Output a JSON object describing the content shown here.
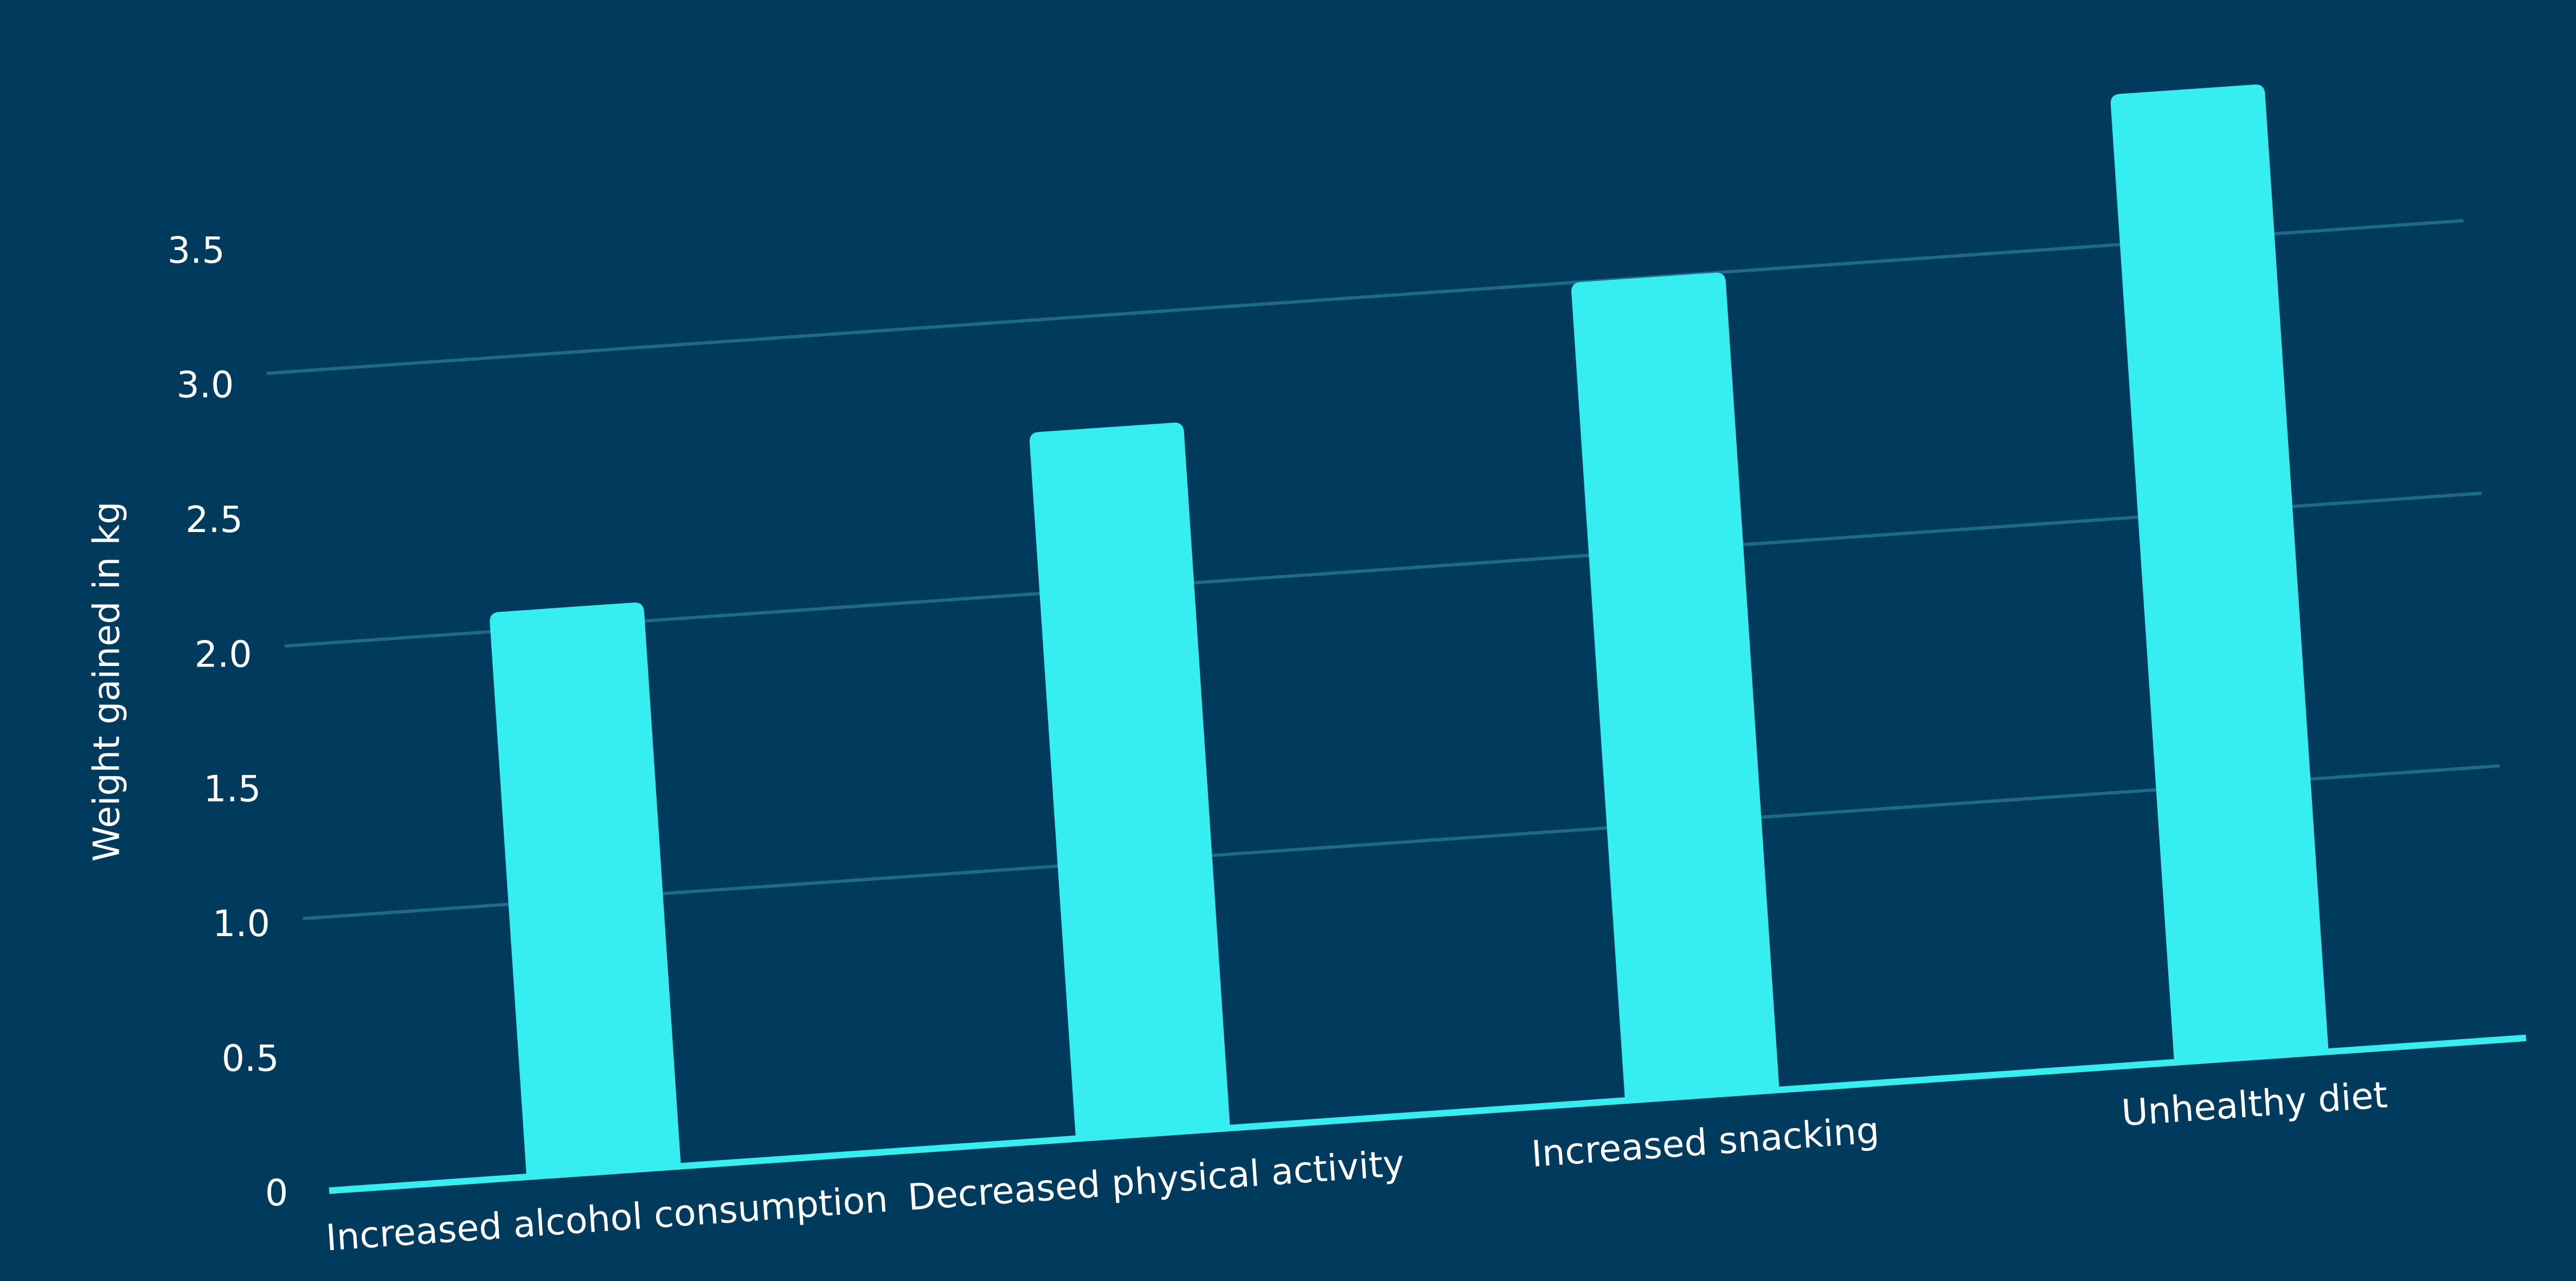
{
  "chart_data": {
    "type": "bar",
    "y_label": "Weight gained in kg",
    "categories": [
      "Increased alcohol consumption",
      "Decreased physical activity",
      "Increased snacking",
      "Unhealthy diet"
    ],
    "values": [
      2.07,
      2.59,
      3.0,
      3.55
    ],
    "color": "#36eef0",
    "ylim": [
      0,
      3.6
    ],
    "yticks": [
      0,
      0.5,
      {
        "value": 1,
        "label": "1.0"
      },
      1.5,
      {
        "value": 2,
        "label": "2.0"
      },
      2.5,
      {
        "value": 3,
        "label": "3.0"
      },
      3.5
    ],
    "grid": true
  }
}
